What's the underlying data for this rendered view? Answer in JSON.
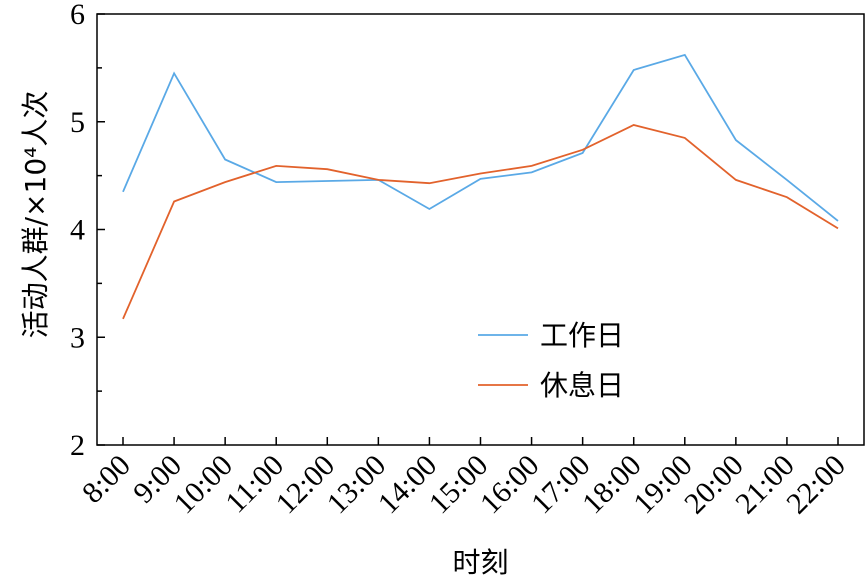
{
  "chart_data": {
    "type": "line",
    "xlabel": "时刻",
    "ylabel": "活动人群/×10⁴人次",
    "categories": [
      "8:00",
      "9:00",
      "10:00",
      "11:00",
      "12:00",
      "13:00",
      "14:00",
      "15:00",
      "16:00",
      "17:00",
      "18:00",
      "19:00",
      "20:00",
      "21:00",
      "22:00"
    ],
    "ylim": [
      2,
      6
    ],
    "yticks": [
      "2",
      "3",
      "4",
      "5",
      "6"
    ],
    "grid": false,
    "legend_position": "center-right",
    "series": [
      {
        "name": "工作日",
        "color": "#5aa9e6",
        "values": [
          4.35,
          5.45,
          4.65,
          4.44,
          4.45,
          4.46,
          4.19,
          4.47,
          4.53,
          4.71,
          5.48,
          5.62,
          4.83,
          4.46,
          4.08
        ]
      },
      {
        "name": "休息日",
        "color": "#e2622c",
        "values": [
          3.17,
          4.26,
          4.44,
          4.59,
          4.56,
          4.46,
          4.43,
          4.52,
          4.59,
          4.74,
          4.97,
          4.85,
          4.46,
          4.3,
          4.01
        ]
      }
    ]
  }
}
